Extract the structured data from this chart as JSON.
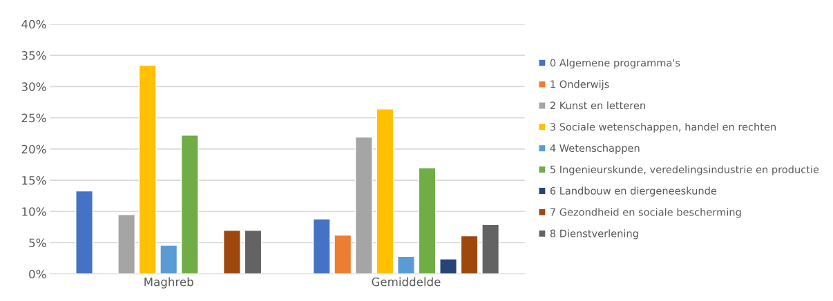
{
  "chart_data": {
    "type": "bar",
    "categories": [
      "Maghreb",
      "Gemiddelde"
    ],
    "series": [
      {
        "name": "0 Algemene programma's",
        "color": "#4472c4",
        "values": [
          13.3,
          8.8
        ]
      },
      {
        "name": "1 Onderwijs",
        "color": "#ed7d31",
        "values": [
          null,
          6.2
        ]
      },
      {
        "name": "2 Kunst en letteren",
        "color": "#a5a5a5",
        "values": [
          9.5,
          21.9
        ]
      },
      {
        "name": "3 Sociale wetenschappen, handel en rechten",
        "color": "#ffc000",
        "values": [
          33.4,
          26.4
        ]
      },
      {
        "name": "4 Wetenschappen",
        "color": "#5b9bd5",
        "values": [
          4.6,
          2.8
        ]
      },
      {
        "name": "5 Ingenieurskunde, veredelingsindustrie en productie",
        "color": "#70ad47",
        "values": [
          22.2,
          17.0
        ]
      },
      {
        "name": "6 Landbouw en diergeneeskunde",
        "color": "#264478",
        "values": [
          null,
          2.4
        ]
      },
      {
        "name": "7 Gezondheid en sociale bescherming",
        "color": "#9e480e",
        "values": [
          7.0,
          6.1
        ]
      },
      {
        "name": "8 Dienstverlening",
        "color": "#636363",
        "values": [
          7.0,
          7.9
        ]
      }
    ],
    "ylim": [
      0,
      40
    ],
    "yticks": [
      {
        "value": 0,
        "label": "0%"
      },
      {
        "value": 5,
        "label": "5%"
      },
      {
        "value": 10,
        "label": "10%"
      },
      {
        "value": 15,
        "label": "15%"
      },
      {
        "value": 20,
        "label": "20%"
      },
      {
        "value": 25,
        "label": "25%"
      },
      {
        "value": 30,
        "label": "30%"
      },
      {
        "value": 35,
        "label": "35%"
      },
      {
        "value": 40,
        "label": "40%"
      }
    ],
    "grid": "y",
    "legend": "right"
  }
}
